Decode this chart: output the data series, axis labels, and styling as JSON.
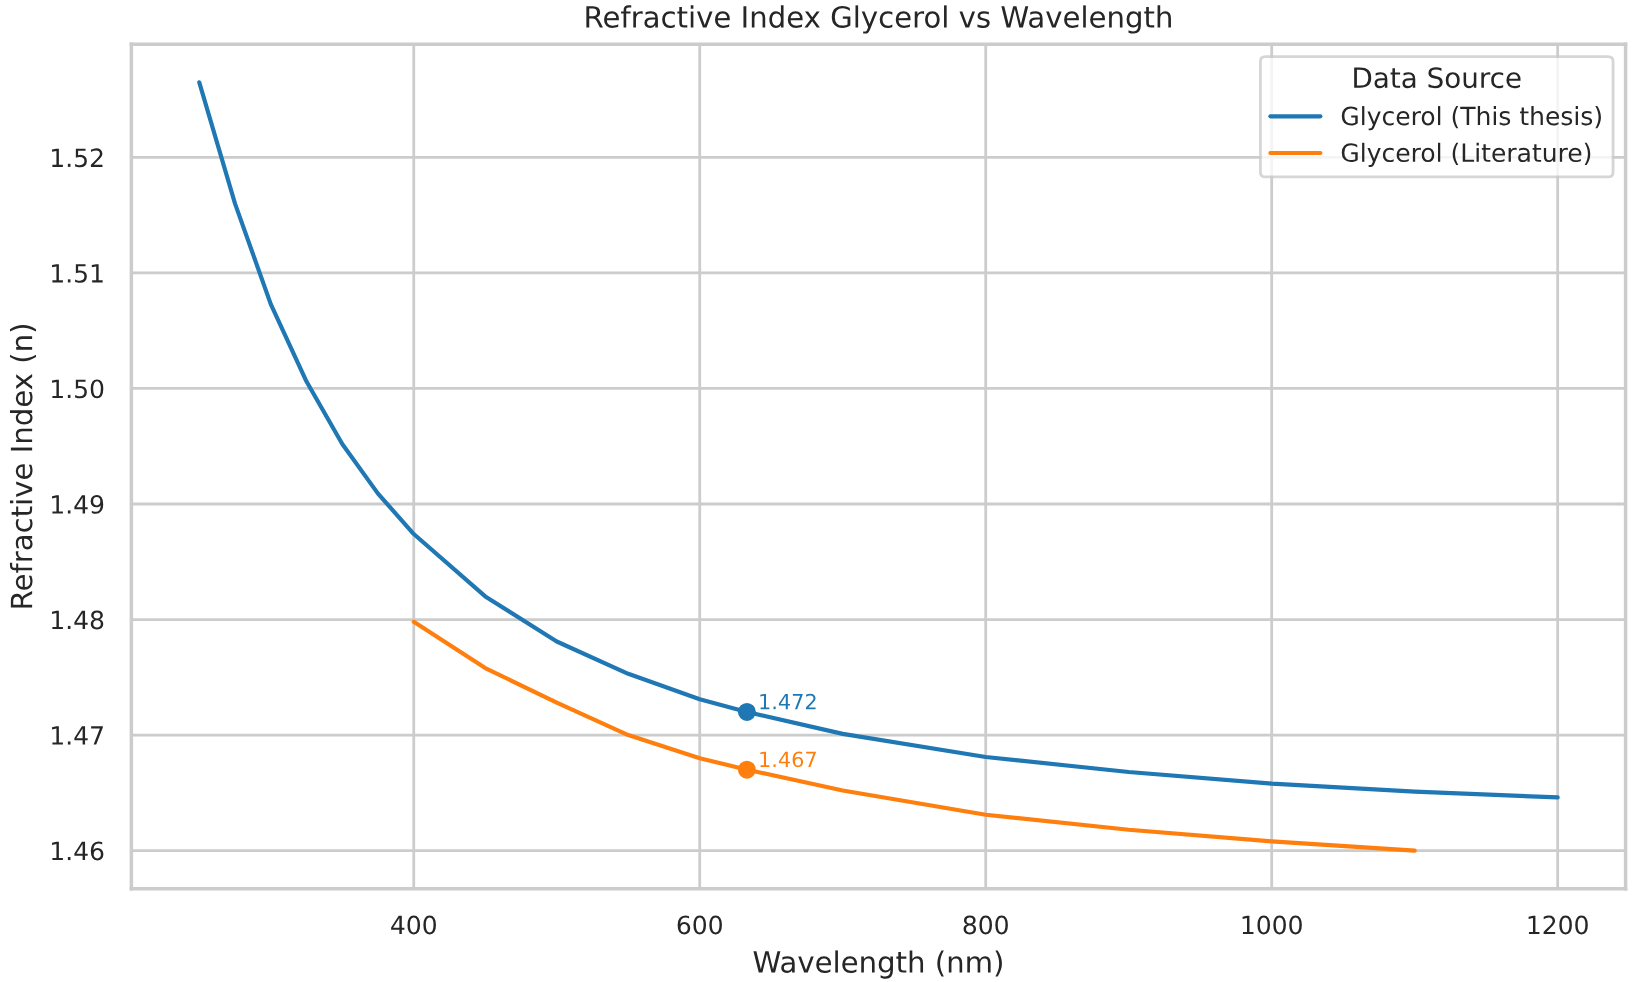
{
  "chart_data": {
    "type": "line",
    "title": "Refractive Index Glycerol vs Wavelength",
    "xlabel": "Wavelength (nm)",
    "ylabel": "Refractive Index (n)",
    "legend_title": "Data Source",
    "legend": "top right",
    "grid": true,
    "xlim": [
      202.5,
      1247.5
    ],
    "xticks": [
      400,
      600,
      800,
      1000,
      1200
    ],
    "ylim": [
      1.4567,
      1.5298
    ],
    "yticks": [
      1.46,
      1.47,
      1.48,
      1.49,
      {
        "value": 1.5,
        "label": "1.50"
      },
      1.51,
      1.52
    ],
    "series": [
      {
        "name": "Glycerol (This thesis)",
        "color": "#1f77b4",
        "x": [
          250,
          275,
          300,
          325,
          350,
          375,
          400,
          450,
          500,
          550,
          600,
          633,
          700,
          800,
          900,
          1000,
          1100,
          1200
        ],
        "values": [
          1.5265,
          1.516,
          1.5073,
          1.5006,
          1.4952,
          1.4909,
          1.4874,
          1.482,
          1.4781,
          1.4753,
          1.4731,
          1.472,
          1.4701,
          1.4681,
          1.4668,
          1.4658,
          1.4651,
          1.4646
        ]
      },
      {
        "name": "Glycerol (Literature)",
        "color": "#ff7f0e",
        "x": [
          400,
          450,
          500,
          550,
          600,
          633,
          700,
          800,
          900,
          1000,
          1100
        ],
        "values": [
          1.4798,
          1.4758,
          1.4728,
          1.47,
          1.468,
          1.467,
          1.4652,
          1.4631,
          1.4618,
          1.4608,
          1.46
        ]
      },
      {
        "type": "scatter",
        "color": "#1f77b4",
        "x": [
          633
        ],
        "values": [
          1.472
        ],
        "value_labels": [
          "1.472"
        ]
      },
      {
        "type": "scatter",
        "color": "#ff7f0e",
        "x": [
          633
        ],
        "values": [
          1.467
        ],
        "value_labels": [
          "1.467"
        ]
      }
    ]
  }
}
